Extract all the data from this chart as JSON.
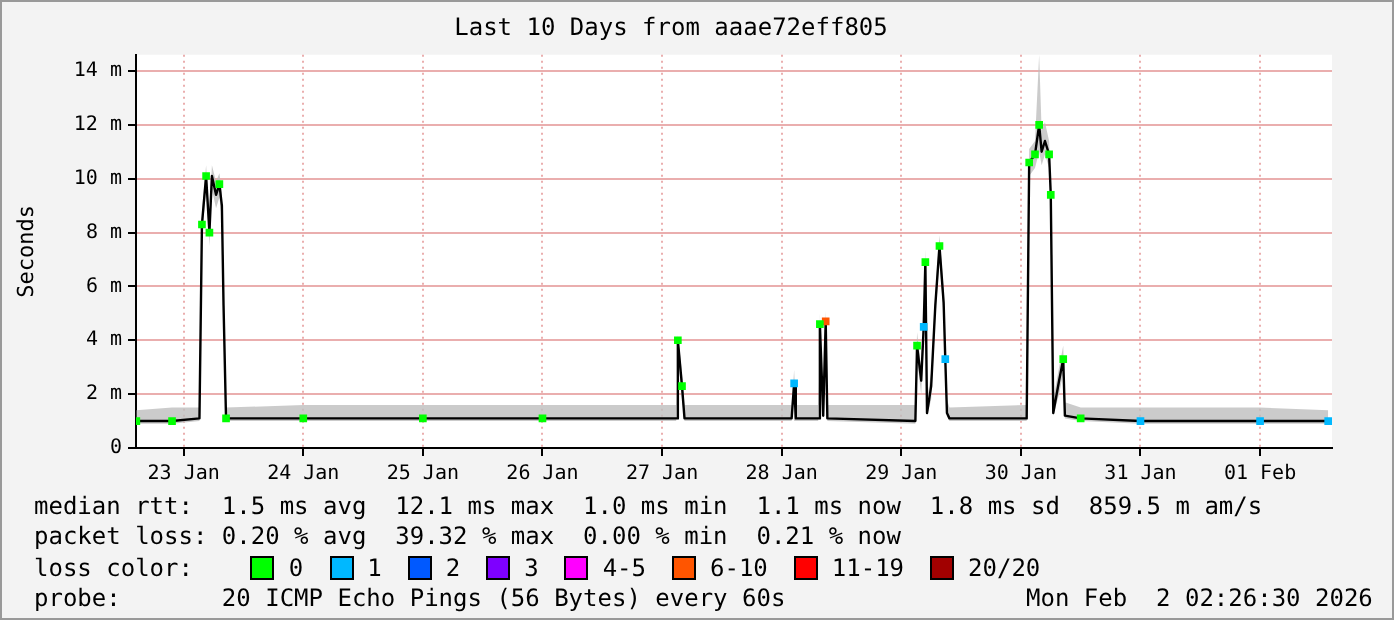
{
  "chart_data": {
    "type": "line",
    "title": "Last 10 Days from aaae72eff805",
    "ylabel": "Seconds",
    "xlim": [
      "2026-01-23T02:26",
      "2026-02-02T02:26"
    ],
    "xticks": [
      {
        "value": "2026-01-23T12:00",
        "label": "23 Jan"
      },
      {
        "value": "2026-01-24T12:00",
        "label": "24 Jan"
      },
      {
        "value": "2026-01-25T12:00",
        "label": "25 Jan"
      },
      {
        "value": "2026-01-26T12:00",
        "label": "26 Jan"
      },
      {
        "value": "2026-01-27T12:00",
        "label": "27 Jan"
      },
      {
        "value": "2026-01-28T12:00",
        "label": "28 Jan"
      },
      {
        "value": "2026-01-29T12:00",
        "label": "29 Jan"
      },
      {
        "value": "2026-01-30T12:00",
        "label": "30 Jan"
      },
      {
        "value": "2026-01-31T12:00",
        "label": "31 Jan"
      },
      {
        "value": "2026-02-01T12:00",
        "label": "01 Feb"
      }
    ],
    "ylim": [
      0,
      14.6
    ],
    "yticks": [
      {
        "value": 0,
        "label": "0"
      },
      {
        "value": 2,
        "label": "2 m"
      },
      {
        "value": 4,
        "label": "4 m"
      },
      {
        "value": 6,
        "label": "6 m"
      },
      {
        "value": 8,
        "label": "8 m"
      },
      {
        "value": 10,
        "label": "10 m"
      },
      {
        "value": 12,
        "label": "12 m"
      },
      {
        "value": 14,
        "label": "14 m"
      }
    ],
    "grid": true,
    "legend": "bottom",
    "legend_title": "loss color:",
    "marker": "square",
    "annotations": [
      "median rtt:  1.5 ms avg  12.1 ms max  1.0 ms min  1.1 ms now  1.8 ms sd  859.5 m am/s",
      "packet loss: 0.20 % avg  39.32 % max  0.00 % min  0.21 % now",
      "probe:       20 ICMP Echo Pings (56 Bytes) every 60s",
      "Mon Feb  2 02:26:30 2026"
    ],
    "series": [
      {
        "type": "line",
        "color": "#000000",
        "marker": "none",
        "x": [
          "2026-01-23T02:30",
          "2026-01-23T09:40",
          "2026-01-23T15:10",
          "2026-01-23T15:40",
          "2026-01-23T16:30",
          "2026-01-23T17:10",
          "2026-01-23T17:40",
          "2026-01-23T18:30",
          "2026-01-23T19:10",
          "2026-01-23T19:40",
          "2026-01-23T20:00",
          "2026-01-23T20:30",
          "2026-01-24T12:00",
          "2026-01-25T12:00",
          "2026-01-26T12:00",
          "2026-01-27T14:50",
          "2026-01-27T15:10",
          "2026-01-27T16:00",
          "2026-01-27T16:30",
          "2026-01-28T14:00",
          "2026-01-28T14:30",
          "2026-01-28T14:50",
          "2026-01-28T19:20",
          "2026-01-28T19:40",
          "2026-01-28T20:20",
          "2026-01-28T20:50",
          "2026-01-28T21:10",
          "2026-01-29T14:50",
          "2026-01-29T15:10",
          "2026-01-29T16:00",
          "2026-01-29T16:30",
          "2026-01-29T16:50",
          "2026-01-29T17:10",
          "2026-01-29T18:00",
          "2026-01-29T18:50",
          "2026-01-29T19:40",
          "2026-01-29T20:30",
          "2026-01-29T20:50",
          "2026-01-29T21:10",
          "2026-01-29T21:40",
          "2026-01-30T13:10",
          "2026-01-30T13:40",
          "2026-01-30T14:50",
          "2026-01-30T15:40",
          "2026-01-30T16:10",
          "2026-01-30T16:50",
          "2026-01-30T17:40",
          "2026-01-30T18:00",
          "2026-01-30T18:30",
          "2026-01-30T19:40",
          "2026-01-30T20:30",
          "2026-01-30T20:50",
          "2026-01-31T00:00",
          "2026-01-31T12:00",
          "2026-02-01T12:00",
          "2026-02-02T01:40"
        ],
        "values": [
          1.0,
          1.0,
          1.1,
          8.3,
          10.1,
          8.0,
          10.1,
          9.4,
          9.8,
          9.0,
          5.3,
          1.1,
          1.1,
          1.1,
          1.1,
          1.1,
          4.0,
          2.3,
          1.1,
          1.1,
          2.4,
          1.1,
          1.1,
          4.6,
          1.2,
          4.7,
          1.1,
          1.0,
          3.8,
          2.5,
          4.5,
          6.9,
          1.3,
          2.3,
          5.3,
          7.5,
          5.4,
          3.3,
          1.3,
          1.1,
          1.1,
          10.6,
          10.9,
          12.0,
          11.0,
          11.4,
          10.9,
          9.4,
          1.3,
          2.5,
          3.3,
          1.2,
          1.1,
          1.0,
          1.0,
          1.0
        ],
        "lower": [
          0.9,
          0.9,
          1.0,
          7.8,
          9.6,
          7.5,
          9.6,
          8.9,
          9.3,
          8.5,
          4.8,
          1.0,
          1.0,
          1.0,
          1.0,
          1.0,
          3.5,
          1.8,
          1.0,
          1.0,
          1.9,
          1.0,
          1.0,
          4.1,
          1.1,
          4.2,
          1.0,
          0.9,
          3.3,
          2.0,
          4.0,
          6.4,
          1.2,
          1.8,
          4.8,
          7.0,
          4.9,
          2.8,
          1.2,
          1.0,
          1.0,
          10.1,
          10.4,
          11.0,
          10.5,
          10.9,
          10.4,
          8.9,
          1.2,
          2.0,
          2.8,
          1.1,
          1.0,
          0.9,
          0.9,
          0.9
        ],
        "upper": [
          1.4,
          1.5,
          1.5,
          8.8,
          10.5,
          8.6,
          10.5,
          9.9,
          10.2,
          9.5,
          5.8,
          1.5,
          1.6,
          1.6,
          1.6,
          1.6,
          4.2,
          2.8,
          1.6,
          1.6,
          2.9,
          1.6,
          1.6,
          5.0,
          1.7,
          5.1,
          1.6,
          1.6,
          4.3,
          3.0,
          5.0,
          7.4,
          1.8,
          2.8,
          5.8,
          7.9,
          5.9,
          3.8,
          1.8,
          1.5,
          1.6,
          11.1,
          11.4,
          14.6,
          11.8,
          12.1,
          11.4,
          9.9,
          1.8,
          3.0,
          3.8,
          1.7,
          1.5,
          1.5,
          1.5,
          1.4
        ]
      },
      {
        "type": "scatter",
        "name": "0",
        "color": "#00ff00",
        "x": [
          "2026-01-23T02:30",
          "2026-01-23T09:40",
          "2026-01-23T15:40",
          "2026-01-23T16:30",
          "2026-01-23T17:10",
          "2026-01-23T19:10",
          "2026-01-23T20:30",
          "2026-01-24T12:00",
          "2026-01-25T12:00",
          "2026-01-26T12:00",
          "2026-01-27T15:10",
          "2026-01-27T16:00",
          "2026-01-28T19:40",
          "2026-01-29T15:10",
          "2026-01-29T16:50",
          "2026-01-29T19:40",
          "2026-01-30T13:40",
          "2026-01-30T14:50",
          "2026-01-30T15:40",
          "2026-01-30T17:40",
          "2026-01-30T18:00",
          "2026-01-30T20:30",
          "2026-01-31T00:00"
        ],
        "values": [
          1.0,
          1.0,
          8.3,
          10.1,
          8.0,
          9.8,
          1.1,
          1.1,
          1.1,
          1.1,
          4.0,
          2.3,
          4.6,
          3.8,
          6.9,
          7.5,
          10.6,
          10.9,
          12.0,
          10.9,
          9.4,
          3.3,
          1.1
        ]
      },
      {
        "type": "scatter",
        "name": "1",
        "color": "#00b8ff",
        "x": [
          "2026-01-28T14:30",
          "2026-01-29T16:30",
          "2026-01-29T20:50",
          "2026-01-31T12:00",
          "2026-02-01T12:00",
          "2026-02-02T01:40"
        ],
        "values": [
          2.4,
          4.5,
          3.3,
          1.0,
          1.0,
          1.0
        ]
      },
      {
        "type": "scatter",
        "name": "2",
        "color": "#0059ff"
      },
      {
        "type": "scatter",
        "name": "3",
        "color": "#7e00ff"
      },
      {
        "type": "scatter",
        "name": "4-5",
        "color": "#ff00ff"
      },
      {
        "type": "scatter",
        "name": "6-10",
        "color": "#ff5500",
        "x": [
          "2026-01-28T20:50"
        ],
        "values": [
          4.7
        ]
      },
      {
        "type": "scatter",
        "name": "11-19",
        "color": "#ff0000"
      },
      {
        "type": "scatter",
        "name": "20/20",
        "color": "#a10000"
      }
    ]
  }
}
